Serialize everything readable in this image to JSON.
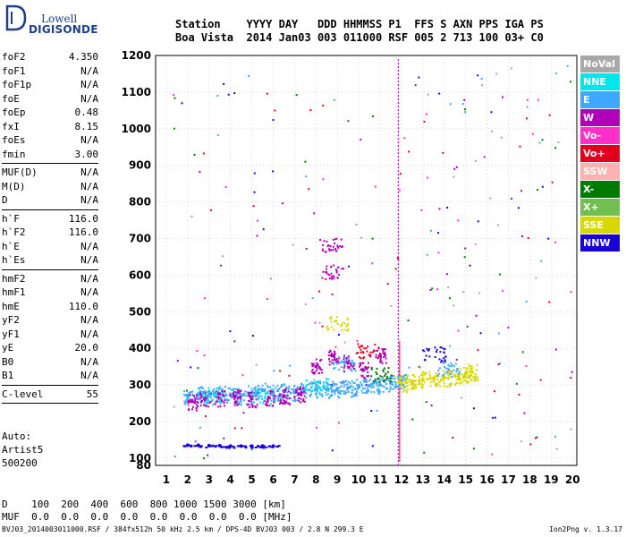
{
  "brand": {
    "line1": "Lowell",
    "line2": "DIGISONDE"
  },
  "header": {
    "row1": "Station    YYYY DAY   DDD HHMMSS P1  FFS S AXN PPS IGA PS",
    "row2": "Boa Vista  2014 Jan03 003 011000 RSF 005 2 713 100 03+ C0"
  },
  "params": [
    {
      "name": "foF2",
      "value": "4.350"
    },
    {
      "name": "foF1",
      "value": "N/A"
    },
    {
      "name": "foF1p",
      "value": "N/A"
    },
    {
      "name": "foE",
      "value": "N/A"
    },
    {
      "name": "foEp",
      "value": "0.48"
    },
    {
      "name": "fxI",
      "value": "8.15"
    },
    {
      "name": "foEs",
      "value": "N/A"
    },
    {
      "name": "fmin",
      "value": "3.00"
    },
    {
      "sep": true
    },
    {
      "name": "MUF(D)",
      "value": "N/A"
    },
    {
      "name": "M(D)",
      "value": "N/A"
    },
    {
      "name": "D",
      "value": "N/A"
    },
    {
      "sep": true
    },
    {
      "name": "h`F",
      "value": "116.0"
    },
    {
      "name": "h`F2",
      "value": "116.0"
    },
    {
      "name": "h`E",
      "value": "N/A"
    },
    {
      "name": "h`Es",
      "value": "N/A"
    },
    {
      "sep": true
    },
    {
      "name": "hmF2",
      "value": "N/A"
    },
    {
      "name": "hmF1",
      "value": "N/A"
    },
    {
      "name": "hmE",
      "value": "110.0"
    },
    {
      "name": "yF2",
      "value": "N/A"
    },
    {
      "name": "yF1",
      "value": "N/A"
    },
    {
      "name": "yE",
      "value": "20.0"
    },
    {
      "name": "B0",
      "value": "N/A"
    },
    {
      "name": "B1",
      "value": "N/A"
    },
    {
      "sep": true
    },
    {
      "name": "C-level",
      "value": "55"
    },
    {
      "sep": true
    }
  ],
  "auto": {
    "line1": "Auto:",
    "line2": "Artist5",
    "line3": "500200"
  },
  "legend": [
    {
      "label": "NoVal",
      "color": "#a8a8a8"
    },
    {
      "label": "NNE",
      "color": "#00e5ee"
    },
    {
      "label": "E",
      "color": "#3ea8ff"
    },
    {
      "label": "W",
      "color": "#b000b8"
    },
    {
      "label": "Vo-",
      "color": "#ff2fc8"
    },
    {
      "label": "Vo+",
      "color": "#e0001e"
    },
    {
      "label": "SSW",
      "color": "#ffb0b0"
    },
    {
      "label": "X-",
      "color": "#007a00"
    },
    {
      "label": "X+",
      "color": "#70bf50"
    },
    {
      "label": "SSE",
      "color": "#d8d800"
    },
    {
      "label": "NNW",
      "color": "#1a00d8"
    }
  ],
  "mufTable": {
    "row1": "D    100  200  400  600  800 1000 1500 3000 [km]",
    "row2": "MUF  0.0  0.0  0.0  0.0  0.0  0.0  0.0  0.0 [MHz]"
  },
  "footer": "BVJ03_2014003011000.RSF / 384fx512h 50 kHz 2.5 km / DPS-4D BVJ03 003 / 2.8 N 299.3 E",
  "version": "Ion2Png v. 1.3.17",
  "chart_data": {
    "type": "scatter",
    "title": "",
    "xlabel": "",
    "ylabel": "",
    "xlim": [
      0.5,
      20.2
    ],
    "ylim": [
      80,
      1200
    ],
    "xticks": [
      1,
      2,
      3,
      4,
      5,
      6,
      7,
      8,
      9,
      10,
      11,
      12,
      13,
      14,
      15,
      16,
      17,
      18,
      19,
      20
    ],
    "yticks": [
      80,
      100,
      200,
      300,
      400,
      500,
      600,
      700,
      800,
      900,
      1000,
      1100,
      1200
    ],
    "grid": true,
    "markers": {
      "vertical_line_mhz": 11.85
    },
    "series": [
      {
        "mode": "E",
        "x": [
          2.0,
          2.5,
          3.0,
          3.5,
          4.0,
          4.5,
          5.0,
          5.5,
          6.0,
          6.5,
          7.0,
          7.5,
          8.0,
          8.5,
          9.0,
          9.5,
          10.0,
          10.5,
          11.0,
          11.5,
          12.0
        ],
        "y": [
          270,
          275,
          270,
          275,
          272,
          270,
          280,
          285,
          280,
          282,
          280,
          288,
          290,
          288,
          290,
          292,
          295,
          298,
          300,
          305,
          310
        ]
      },
      {
        "mode": "W",
        "x": [
          2.2,
          2.8,
          3.5,
          4.2,
          5.0,
          5.8,
          6.5,
          7.2,
          8.0,
          8.8,
          9.5,
          10.2,
          11.0
        ],
        "y": [
          255,
          262,
          265,
          268,
          262,
          265,
          270,
          275,
          350,
          380,
          360,
          340,
          380
        ]
      },
      {
        "mode": "SSE",
        "x": [
          12.0,
          12.5,
          13.0,
          13.5,
          14.0,
          14.5,
          15.0,
          15.3
        ],
        "y": [
          305,
          310,
          315,
          318,
          320,
          325,
          330,
          335
        ]
      },
      {
        "mode": "NNW",
        "x": [
          2.0,
          2.5,
          3.0,
          3.5,
          4.0,
          4.5,
          5.0,
          5.5,
          6.0
        ],
        "y": [
          135,
          135,
          134,
          134,
          133,
          133,
          133,
          133,
          133
        ]
      }
    ]
  }
}
